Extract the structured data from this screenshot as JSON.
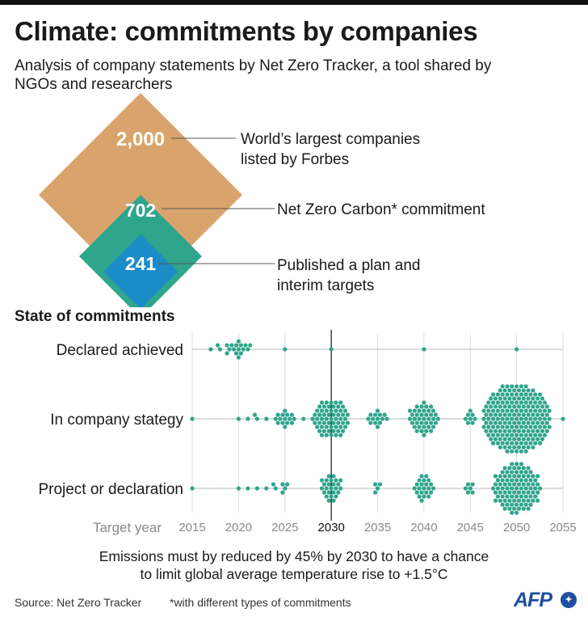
{
  "header": {
    "title": "Climate: commitments by companies",
    "subtitle": "Analysis of company statements by Net Zero Tracker, a tool shared by NGOs and researchers"
  },
  "diamond": {
    "levels": [
      {
        "value": "2,000",
        "label_lines": [
          "World’s largest companies",
          "listed by Forbes"
        ],
        "color": "#d9a46c"
      },
      {
        "value": "702",
        "label_lines": [
          "Net Zero Carbon* commitment"
        ],
        "color": "#2fa58c"
      },
      {
        "value": "241",
        "label_lines": [
          "Published a plan and",
          "interim targets"
        ],
        "color": "#1b8cc7"
      }
    ]
  },
  "section_title": "State of commitments",
  "chart_data": {
    "type": "scatter",
    "subtype": "beeswarm",
    "xlabel": "Target year",
    "x_ticks": [
      2015,
      2020,
      2025,
      2030,
      2035,
      2040,
      2045,
      2050,
      2055
    ],
    "xlim": [
      2015,
      2055
    ],
    "reference_line": 2030,
    "dot_color": "#2fa58c",
    "rows": [
      {
        "label": "Declared achieved",
        "counts_by_year": {
          "2017": 1,
          "2018": 2,
          "2019": 4,
          "2020": 9,
          "2021": 3,
          "2025": 1,
          "2030": 1,
          "2040": 1,
          "2050": 1
        }
      },
      {
        "label": "In company stategy",
        "counts_by_year": {
          "2015": 1,
          "2020": 1,
          "2021": 1,
          "2022": 2,
          "2023": 1,
          "2024": 1,
          "2025": 13,
          "2026": 1,
          "2027": 1,
          "2028": 1,
          "2029": 2,
          "2030": 60,
          "2034": 1,
          "2035": 12,
          "2036": 2,
          "2039": 1,
          "2040": 40,
          "2045": 8,
          "2050": 200,
          "2055": 1
        }
      },
      {
        "label": "Project or declaration",
        "counts_by_year": {
          "2015": 1,
          "2020": 1,
          "2021": 1,
          "2022": 1,
          "2023": 1,
          "2024": 2,
          "2025": 4,
          "2030": 25,
          "2035": 4,
          "2040": 22,
          "2045": 6,
          "2050": 100
        }
      }
    ]
  },
  "note": [
    "Emissions must by reduced by 45% by 2030 to have a chance",
    "to limit global average temperature rise to +1.5°C"
  ],
  "footer": {
    "source": "Source: Net Zero Tracker",
    "footnote": "*with different types of commitments",
    "logo": "AFP"
  }
}
